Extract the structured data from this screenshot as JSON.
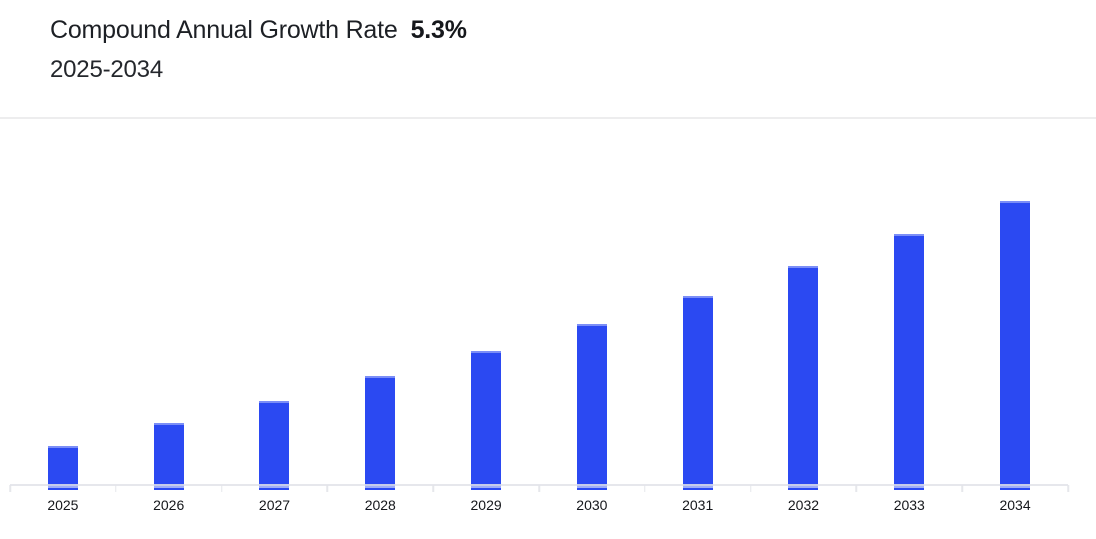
{
  "header": {
    "title": "Compound Annual Growth Rate",
    "cagr_value": "5.3%",
    "subtitle": "2025-2034"
  },
  "chart_data": {
    "type": "bar",
    "title": "Compound Annual Growth Rate",
    "subtitle": "2025-2034",
    "cagr_percent": 5.3,
    "categories": [
      "2025",
      "2026",
      "2027",
      "2028",
      "2029",
      "2030",
      "2031",
      "2032",
      "2033",
      "2034"
    ],
    "values": [
      44,
      67,
      89,
      114,
      139,
      166,
      194,
      224,
      256,
      289
    ],
    "values_unit": "relative bar heights in px; chart shows no y-axis tick labels",
    "xlabel": "",
    "ylabel": "",
    "ylim": [
      0,
      340
    ],
    "grid": false,
    "legend": false,
    "bar_color": "#2B49F2",
    "axis_color": "#E6E7EB",
    "label_color": "#15171B"
  }
}
